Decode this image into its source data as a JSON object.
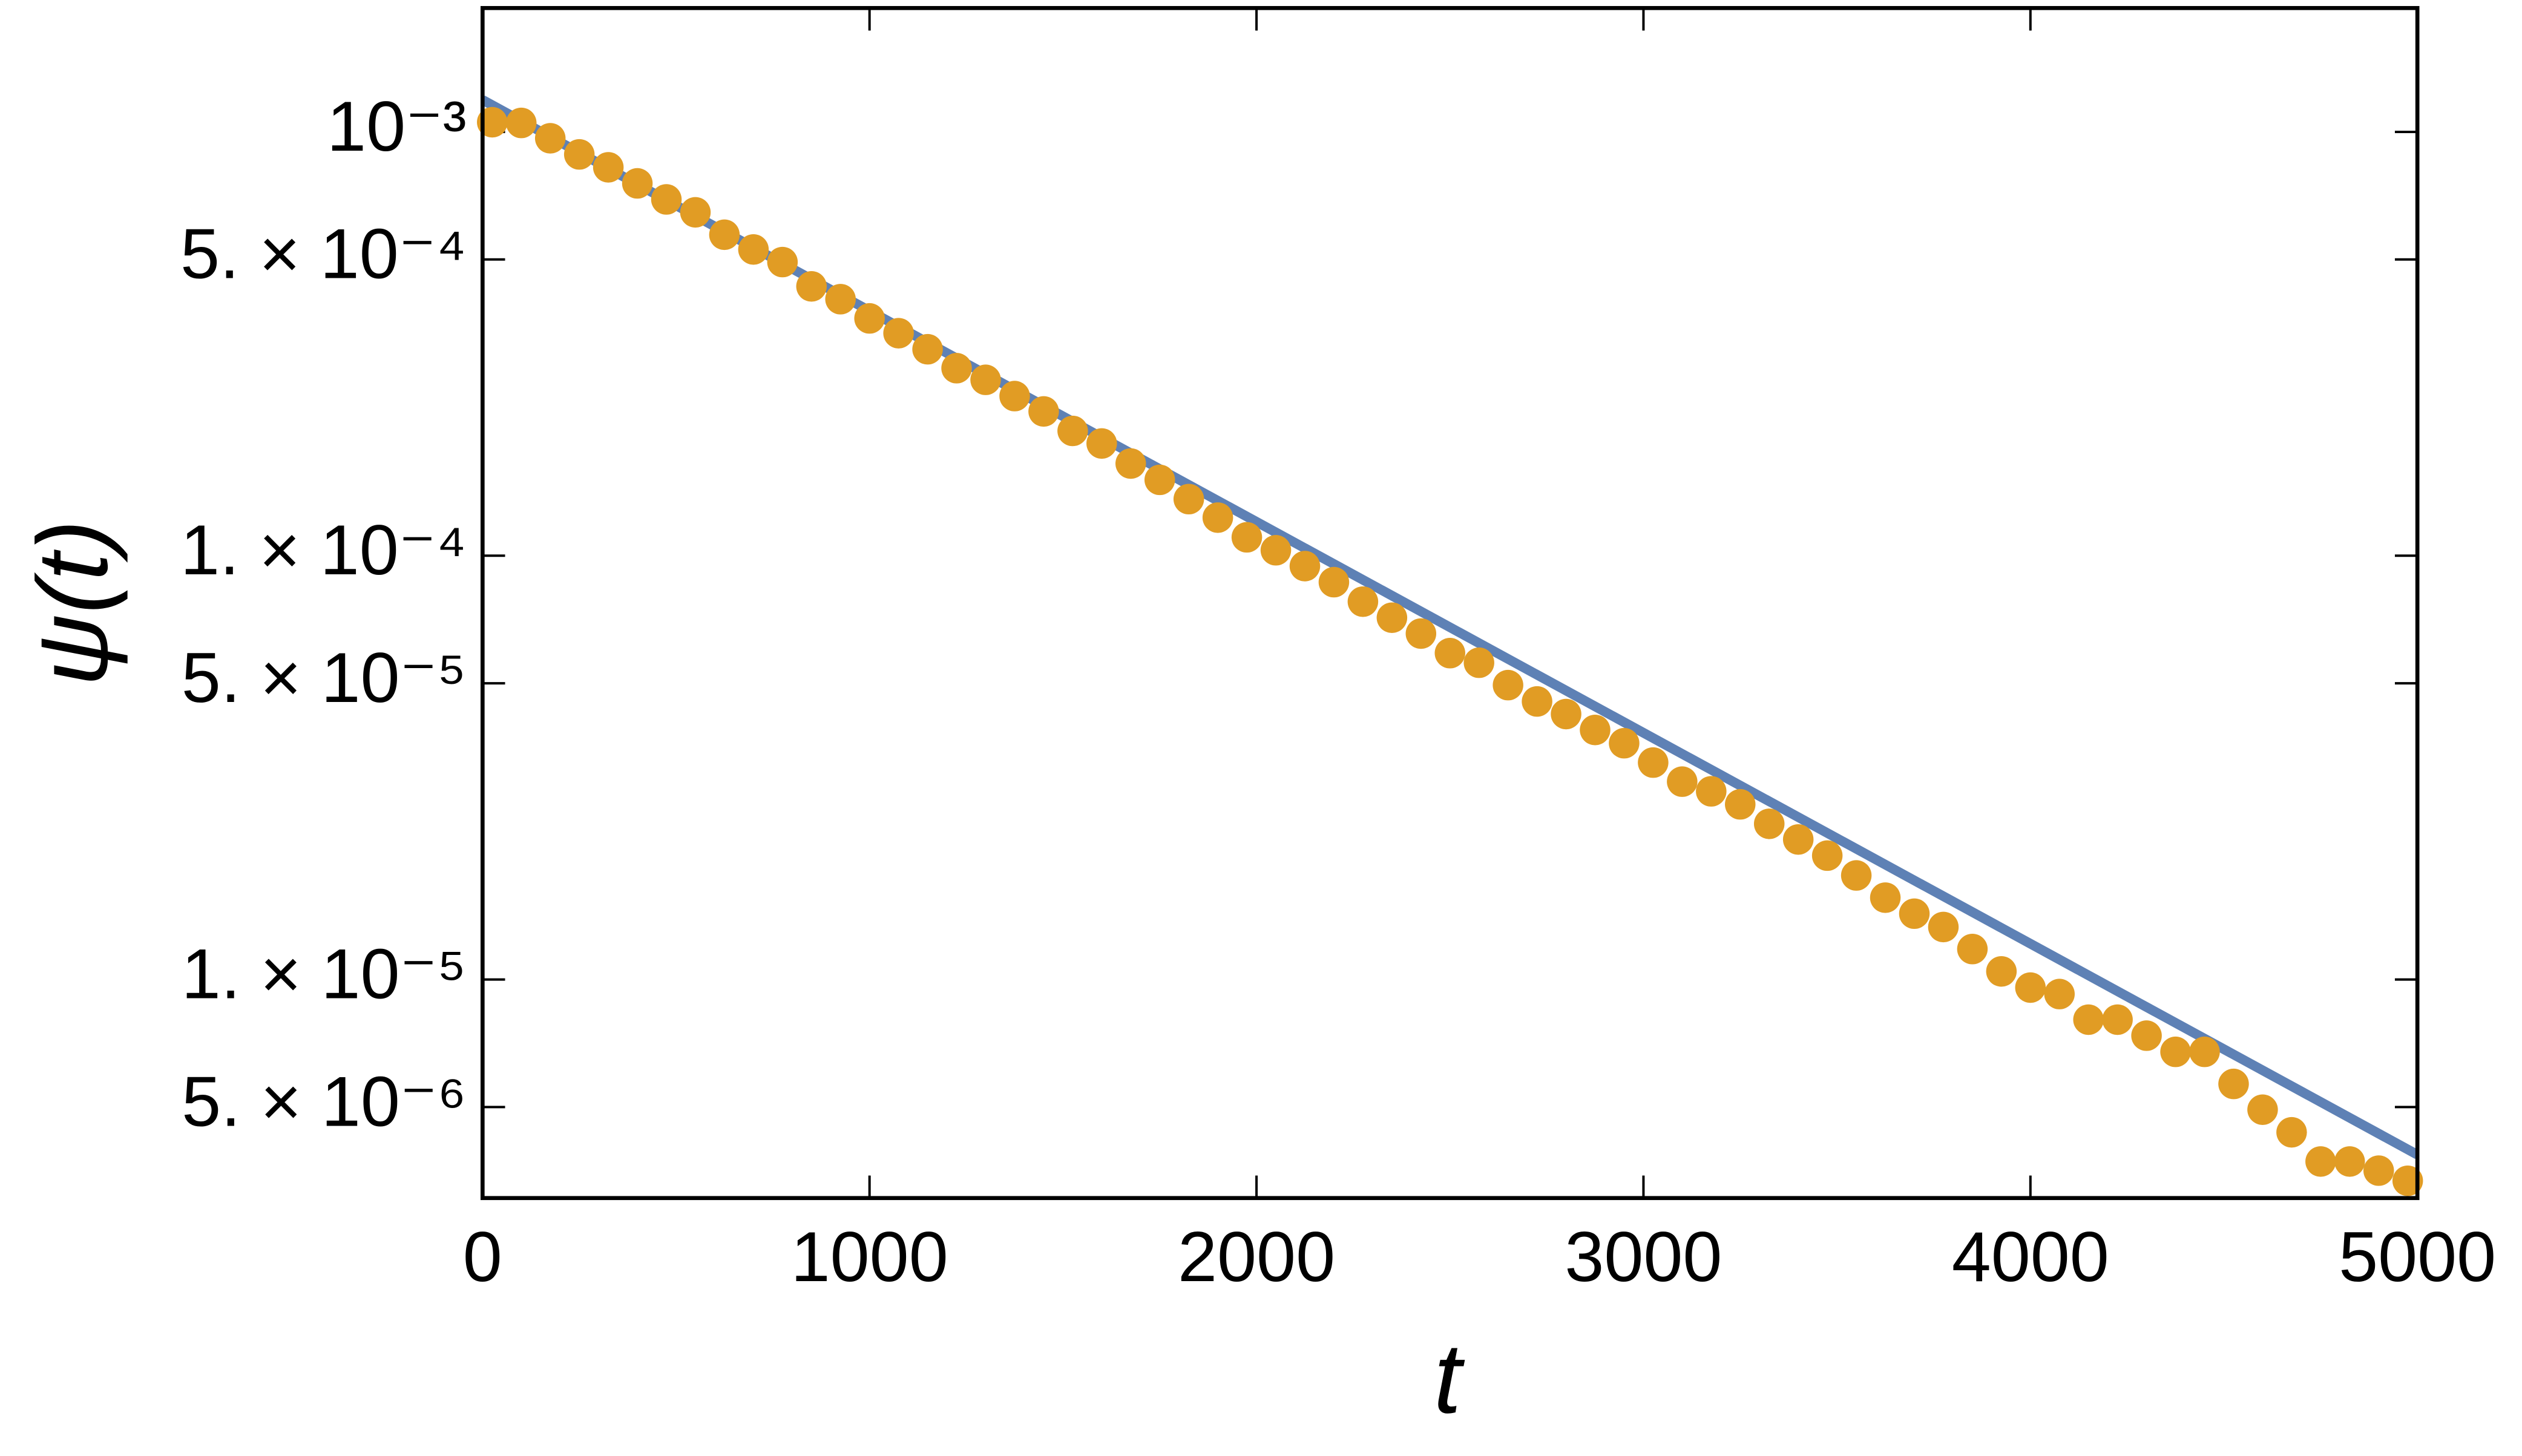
{
  "chart_data": {
    "type": "scatter",
    "xlabel": "t",
    "ylabel": "ψ(t)",
    "xlim": [
      0,
      5000
    ],
    "xticks": [
      0,
      1000,
      2000,
      3000,
      4000,
      5000
    ],
    "ylim": [
      3.05e-06,
      0.00196
    ],
    "ylog": true,
    "yticks": [
      {
        "value": 0.001,
        "label": "10⁻³"
      },
      {
        "value": 0.0005,
        "label": "5. × 10⁻⁴"
      },
      {
        "value": 0.0001,
        "label": "1. × 10⁻⁴"
      },
      {
        "value": 5e-05,
        "label": "5. × 10⁻⁵"
      },
      {
        "value": 1e-05,
        "label": "1. × 10⁻⁵"
      },
      {
        "value": 5e-06,
        "label": "5. × 10⁻⁶"
      }
    ],
    "series": [
      {
        "type": "line",
        "color": "#5e81b5",
        "x": [
          0,
          5000
        ],
        "values": [
          0.00119,
          3.86e-06
        ]
      },
      {
        "type": "scatter",
        "color": "#e19c24",
        "x": [
          25,
          100,
          175,
          250,
          325,
          400,
          475,
          550,
          625,
          700,
          775,
          850,
          925,
          1000,
          1075,
          1150,
          1225,
          1300,
          1375,
          1450,
          1525,
          1600,
          1675,
          1750,
          1825,
          1900,
          1975,
          2050,
          2125,
          2200,
          2275,
          2350,
          2425,
          2500,
          2575,
          2650,
          2725,
          2800,
          2875,
          2950,
          3025,
          3100,
          3175,
          3250,
          3325,
          3400,
          3475,
          3550,
          3625,
          3700,
          3775,
          3850,
          3925,
          4000,
          4075,
          4150,
          4225,
          4300,
          4375,
          4450,
          4525,
          4600,
          4675,
          4750,
          4825,
          4900,
          4975
        ],
        "values": [
          0.001054,
          0.00105,
          0.000966,
          0.000885,
          0.000825,
          0.000756,
          0.000693,
          0.000646,
          0.000572,
          0.000528,
          0.000493,
          0.000432,
          0.000403,
          0.000363,
          0.000335,
          0.000307,
          0.000277,
          0.00026,
          0.000238,
          0.000219,
          0.000197,
          0.000184,
          0.000165,
          0.000151,
          0.000136,
          0.000123,
          0.0001105,
          0.000103,
          9.45e-05,
          8.66e-05,
          7.79e-05,
          7.14e-05,
          6.55e-05,
          5.89e-05,
          5.59e-05,
          4.95e-05,
          4.53e-05,
          4.23e-05,
          3.88e-05,
          3.61e-05,
          3.25e-05,
          2.93e-05,
          2.78e-05,
          2.59e-05,
          2.33e-05,
          2.14e-05,
          1.96e-05,
          1.76e-05,
          1.56e-05,
          1.43e-05,
          1.33e-05,
          1.18e-05,
          1.045e-05,
          9.57e-06,
          9.24e-06,
          8.04e-06,
          8.04e-06,
          7.37e-06,
          6.75e-06,
          6.75e-06,
          5.67e-06,
          4.93e-06,
          4.36e-06,
          3.72e-06,
          3.72e-06,
          3.54e-06,
          3.35e-06
        ]
      }
    ]
  }
}
